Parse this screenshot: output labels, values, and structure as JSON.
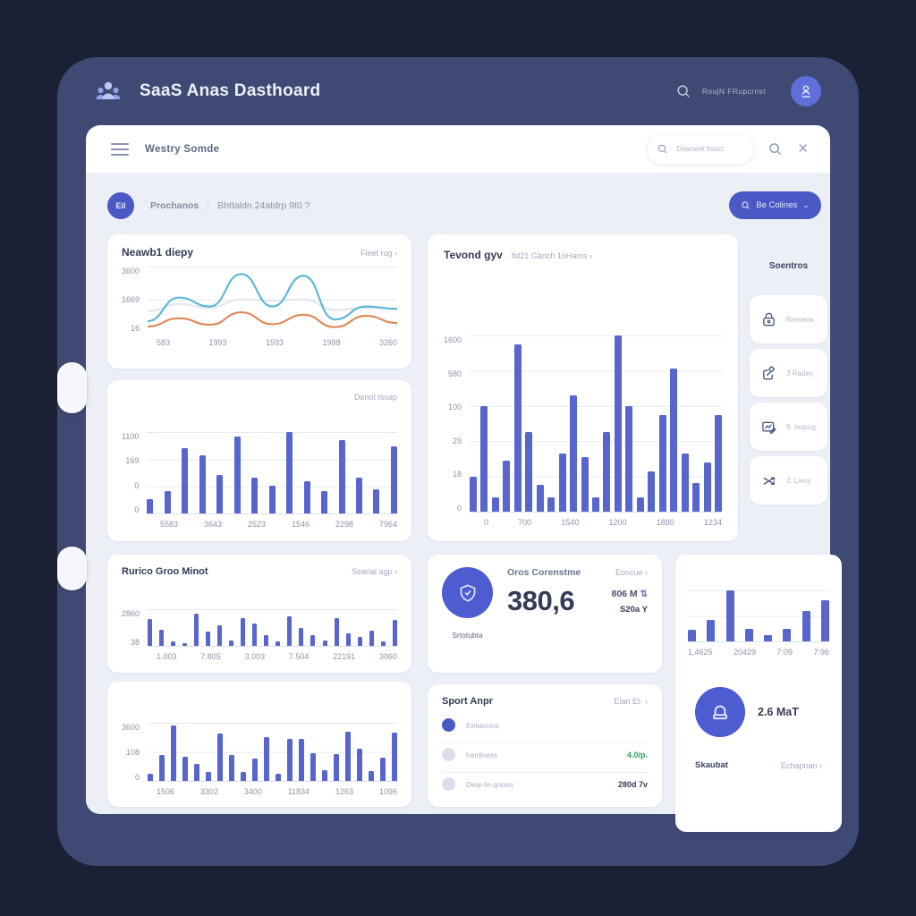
{
  "theme": {
    "bg_outer": "#1a2134",
    "frame": "#3e4a73",
    "panel": "#edeff6",
    "card": "#ffffff",
    "accent": "#4a59c6",
    "bar": "#5765cd",
    "line_primary": "#5fb7d8",
    "line_secondary": "#dd8a5a",
    "text_dark": "#333b55",
    "text_muted": "#a3aabd",
    "green": "#2da05f"
  },
  "header": {
    "title": "SaaS Anas Dasthoard",
    "search_label": "RoujN FRupcrnst"
  },
  "toolbar": {
    "title": "Westry Somde",
    "search_placeholder": "Deanwie fisact"
  },
  "breadcrumb": {
    "badge": "Eil",
    "item": "Prochanos",
    "separator": ":",
    "sub": "Bhttaldn 24atdrp 9t0 ?",
    "button_label": "Be Colines"
  },
  "sidebar": {
    "title": "Soentros",
    "items": [
      {
        "icon": "lock-icon",
        "label": "Rrenens"
      },
      {
        "icon": "share-icon",
        "label": "3 Radey"
      },
      {
        "icon": "edit-chart-icon",
        "label": "9. teqsug"
      },
      {
        "icon": "shuffle-icon",
        "label": "2. Liesy"
      }
    ]
  },
  "stat_card": {
    "title": "Oros Corenstme",
    "link": "Eoncue",
    "value": "380,6",
    "delta": "806 M",
    "delta2": "S20a Y",
    "caption": "Srtotubta",
    "icon": "shield-check-icon"
  },
  "sport_card": {
    "title": "Sport Anpr",
    "link": "Elan Et·",
    "rows": [
      {
        "label": "Eetavcins",
        "value": "",
        "dot_color": "#4a59c6",
        "value_color": "#333b55"
      },
      {
        "label": "herdness",
        "value": "4.0/p.",
        "dot_color": "#dcdfe9",
        "value_color": "#2da05f"
      },
      {
        "label": "Dew-te-qnous",
        "value": "280d 7v",
        "dot_color": "#dcdfe9",
        "value_color": "#333b55"
      }
    ]
  },
  "lock_card": {
    "value": "2.6 MaT",
    "label": "Skaubat",
    "link": "Echapnan",
    "icon": "lock-icon"
  },
  "chart_data": [
    {
      "type": "line",
      "title": "Neawb1 diepy",
      "link": "Fleet rug",
      "y_ticks": [
        "3600",
        "1669",
        "16"
      ],
      "x_ticks": [
        "583",
        "1993",
        "1593",
        "1998",
        "3260"
      ],
      "ylim": [
        0,
        3600
      ],
      "grid": true,
      "legend": "none",
      "series": [
        {
          "name": "primary",
          "color": "#5fb7d8",
          "values_pct": [
            15,
            55,
            40,
            95,
            40,
            92,
            18,
            40,
            36
          ]
        },
        {
          "name": "secondary",
          "color": "#dd8a5a",
          "values_pct": [
            6,
            20,
            9,
            30,
            10,
            26,
            5,
            24,
            12
          ]
        },
        {
          "name": "ghost",
          "color": "#e2e6ee",
          "values_pct": [
            32,
            44,
            38,
            52,
            50,
            52,
            34,
            38,
            36
          ]
        }
      ]
    },
    {
      "type": "bar",
      "corner_label": "Denot tssap",
      "y_ticks": [
        "1100",
        "169",
        "0",
        "0"
      ],
      "x_ticks": [
        "5583",
        "3643",
        "2523",
        "1546",
        "2298",
        "7964"
      ],
      "values_pct": [
        18,
        28,
        80,
        71,
        47,
        94,
        44,
        34,
        100,
        40,
        28,
        90,
        44,
        30,
        82
      ]
    },
    {
      "type": "bar",
      "title": "Tevond gyv",
      "subtitle": "fld21 Ganch 1oHams",
      "y_ticks": [
        "1600",
        "580",
        "100",
        "29",
        "18",
        "0"
      ],
      "x_ticks": [
        "0",
        "700",
        "1540",
        "1200",
        "1880",
        "1234"
      ],
      "values_pct": [
        20,
        60,
        8,
        29,
        95,
        45,
        15,
        8,
        33,
        66,
        31,
        8,
        45,
        100,
        60,
        8,
        23,
        55,
        81,
        33,
        16,
        28,
        55
      ]
    },
    {
      "type": "bar",
      "title": "Rurico Groo Minot",
      "link": "Searial agp",
      "y_ticks": [
        "2860",
        "38"
      ],
      "x_ticks": [
        "1.003",
        "7.805",
        "3.003",
        "7.504",
        "22191",
        "3060"
      ],
      "values_pct": [
        72,
        45,
        12,
        8,
        88,
        38,
        55,
        14,
        75,
        62,
        30,
        12,
        80,
        48,
        30,
        15,
        76,
        35,
        25,
        42,
        12,
        70
      ]
    },
    {
      "type": "bar",
      "y_ticks": [],
      "x_ticks": [
        "1,4625",
        "20429",
        "7:09",
        "7:96"
      ],
      "values_pct": [
        22,
        42,
        100,
        25,
        12,
        25,
        60,
        80
      ]
    },
    {
      "type": "bar",
      "y_ticks": [
        "3600",
        "108",
        "0"
      ],
      "x_ticks": [
        "1506",
        "3302",
        "3400",
        "11834",
        "1263",
        "1096"
      ],
      "values_pct": [
        12,
        45,
        95,
        42,
        30,
        15,
        82,
        45,
        15,
        38,
        75,
        12,
        72,
        73,
        48,
        18,
        46,
        85,
        55,
        17,
        40,
        83
      ]
    }
  ]
}
